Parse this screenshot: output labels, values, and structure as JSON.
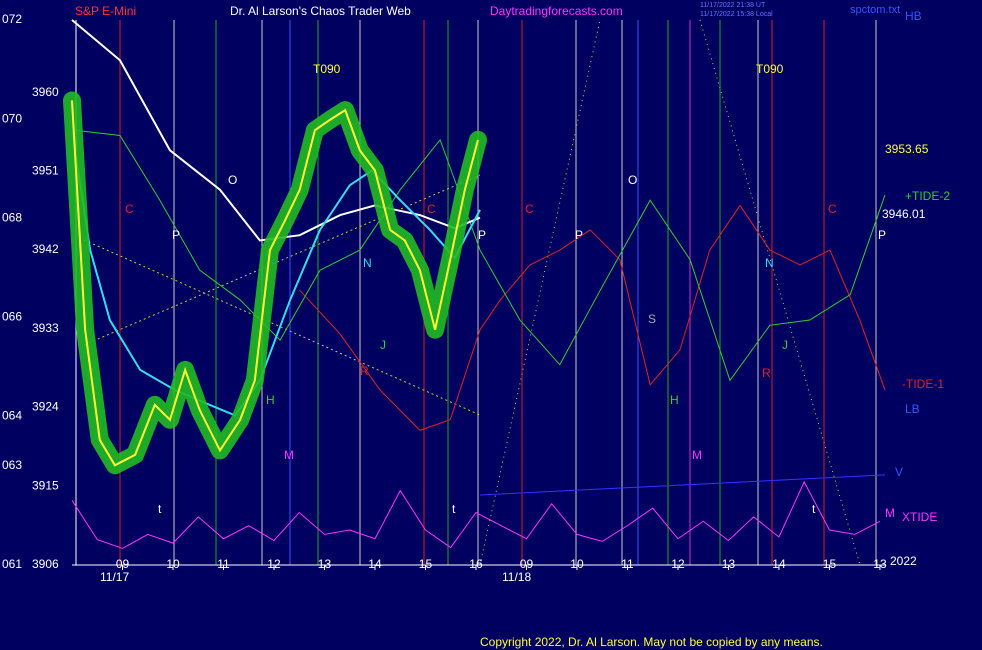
{
  "chart_data": {
    "type": "line",
    "symbol": "S&P E-Mini",
    "title": "Dr. Al Larson's Chaos Trader Web",
    "site": "Daytradingforecasts.com",
    "timestamp_ut": "11/17/2022 21:38 UT",
    "timestamp_local": "11/17/2022 15:38 Local",
    "file": "spctom.txt",
    "corner": "HB",
    "copyright": "Copyright 2022, Dr. Al Larson. May not be copied by any means.",
    "background": "#000060",
    "xlim": [
      0,
      16.1
    ],
    "xticks": [
      {
        "value": 1,
        "label": "09"
      },
      {
        "value": 2,
        "label": "10"
      },
      {
        "value": 3,
        "label": "11"
      },
      {
        "value": 4,
        "label": "12"
      },
      {
        "value": 5,
        "label": "13"
      },
      {
        "value": 6,
        "label": "14"
      },
      {
        "value": 7,
        "label": "15"
      },
      {
        "value": 8,
        "label": "16"
      },
      {
        "value": 9,
        "label": "09"
      },
      {
        "value": 10,
        "label": "10"
      },
      {
        "value": 11,
        "label": "11"
      },
      {
        "value": 12,
        "label": "12"
      },
      {
        "value": 13,
        "label": "13"
      },
      {
        "value": 14,
        "label": "14"
      },
      {
        "value": 15,
        "label": "15"
      },
      {
        "value": 16,
        "label": "13"
      }
    ],
    "dates": [
      "11/17",
      "11/18",
      "2022"
    ],
    "ylim": [
      3906,
      3968.3
    ],
    "yticks": [
      3906,
      3915,
      3924,
      3933,
      3942,
      3951,
      3960
    ],
    "y2lim": [
      61,
      72
    ],
    "y2ticks": [
      {
        "value": 61,
        "label": "061"
      },
      {
        "value": 63,
        "label": "063"
      },
      {
        "value": 64,
        "label": "064"
      },
      {
        "value": 66,
        "label": "066"
      },
      {
        "value": 68,
        "label": "068"
      },
      {
        "value": 70,
        "label": "070"
      },
      {
        "value": 72,
        "label": "072"
      }
    ],
    "series": [
      {
        "color": "#ff33ff",
        "width": 1,
        "x": [
          0,
          0.5,
          1,
          1.5,
          2,
          2.5,
          3,
          3.5,
          4,
          4.5,
          5,
          5.5,
          6,
          6.5,
          7,
          7.5,
          8,
          8.5,
          9,
          9.5,
          10,
          10.5,
          11,
          11.5,
          12,
          12.5,
          13,
          13.5,
          14,
          14.5,
          15,
          15.5,
          16
        ],
        "values": [
          3913.4,
          3908.9,
          3907.9,
          3909.5,
          3908.5,
          3911.5,
          3909,
          3910.5,
          3908.8,
          3912,
          3909.5,
          3910,
          3909,
          3914.5,
          3910,
          3908,
          3912,
          3910.5,
          3909,
          3913,
          3909.5,
          3908.7,
          3910.5,
          3912.5,
          3909,
          3911,
          3908.8,
          3911.5,
          3909.2,
          3915.5,
          3910,
          3909.5,
          3911
        ]
      },
      {
        "color": "#3333ff",
        "width": 1,
        "x": [
          8.08,
          16.1
        ],
        "values": [
          3914.0,
          3916.3
        ]
      },
      {
        "color": "#dd2222",
        "width": 1,
        "x": [
          4.51,
          5.31,
          6.1,
          6.89,
          7.49,
          8.08,
          8.48,
          9.07,
          9.66,
          10.26,
          10.85,
          11.45,
          12.04,
          12.63,
          13.23,
          13.82,
          14.42,
          15.01,
          15.6,
          16.1
        ],
        "values": [
          3937.4,
          3932.4,
          3926.0,
          3921.4,
          3922.6,
          3932.9,
          3936.3,
          3940.3,
          3942.0,
          3944.3,
          3940.9,
          3926.6,
          3930.6,
          3942.0,
          3947.1,
          3942.0,
          3940.3,
          3942.0,
          3934.0,
          3926.0
        ]
      },
      {
        "color": "#33cc33",
        "width": 1,
        "x": [
          0.06,
          0.95,
          1.74,
          2.53,
          3.33,
          4.12,
          4.91,
          5.7,
          6.5,
          7.29,
          8.08,
          8.87,
          9.66,
          10.46,
          11.45,
          12.24,
          13.03,
          13.82,
          14.61,
          15.41,
          16.1
        ],
        "values": [
          3955.7,
          3955.1,
          3947.7,
          3939.7,
          3936.3,
          3931.7,
          3939.7,
          3942.0,
          3948.9,
          3954.6,
          3942.0,
          3934.0,
          3928.9,
          3937.4,
          3947.7,
          3940.9,
          3927.1,
          3933.4,
          3934.0,
          3936.9,
          3948.3
        ]
      },
      {
        "color": "#ffffff",
        "width": 2,
        "x": [
          0,
          0.95,
          1.94,
          2.93,
          3.72,
          4.51,
          5.31,
          6.0,
          6.89,
          7.58,
          8.08
        ],
        "values": [
          3968.3,
          3963.7,
          3953.4,
          3948.9,
          3943.1,
          3943.7,
          3946.0,
          3947.1,
          3946.0,
          3944.5,
          3945.7
        ]
      },
      {
        "color": "#33ddee",
        "width": 2,
        "x": [
          0.06,
          0.36,
          0.75,
          1.35,
          2.04,
          2.73,
          3.23,
          3.72,
          4.32,
          4.91,
          5.5,
          5.94,
          6.5,
          7.09,
          7.58,
          8.08
        ],
        "values": [
          3953.4,
          3942.0,
          3934.0,
          3928.3,
          3926.0,
          3924.3,
          3923.1,
          3927.1,
          3936.3,
          3944.3,
          3949.4,
          3951.1,
          3947.7,
          3944.3,
          3941.1,
          3946.6
        ]
      },
      {
        "color": "#ffff33",
        "width": 2,
        "glow": "#22bb22",
        "x": [
          0,
          0.26,
          0.55,
          0.85,
          1.25,
          1.64,
          1.94,
          2.24,
          2.53,
          2.93,
          3.33,
          3.62,
          3.92,
          4.22,
          4.51,
          4.81,
          5.11,
          5.41,
          5.7,
          6.0,
          6.3,
          6.59,
          6.89,
          7.19,
          7.49,
          7.78,
          8.04
        ],
        "values": [
          3959.1,
          3932.9,
          3920.3,
          3917.4,
          3918.6,
          3924.3,
          3922.6,
          3928.3,
          3923.7,
          3919.1,
          3922.6,
          3927.1,
          3942.0,
          3945.4,
          3948.9,
          3955.7,
          3956.9,
          3958.0,
          3953.4,
          3951.1,
          3944.3,
          3943.1,
          3939.7,
          3932.9,
          3940.9,
          3948.9,
          3954.6
        ]
      }
    ],
    "annotations": [
      {
        "text": "C",
        "color": "#dd2222"
      },
      {
        "text": "P",
        "color": "#ffffff"
      },
      {
        "text": "O",
        "color": "#ffffff"
      },
      {
        "text": "T090",
        "color": "#ffff33"
      },
      {
        "text": "N",
        "color": "#33ddee"
      },
      {
        "text": "C",
        "color": "#dd2222"
      },
      {
        "text": "P",
        "color": "#ffffff"
      },
      {
        "text": "C",
        "color": "#dd2222"
      },
      {
        "text": "P",
        "color": "#ffffff"
      },
      {
        "text": "O",
        "color": "#ffffff"
      },
      {
        "text": "T090",
        "color": "#ffff33"
      },
      {
        "text": "N",
        "color": "#33ddee"
      },
      {
        "text": "C",
        "color": "#dd2222"
      },
      {
        "text": "P",
        "color": "#ffffff"
      },
      {
        "text": "H",
        "color": "#33cc33"
      },
      {
        "text": "M",
        "color": "#ff33ff"
      },
      {
        "text": "J",
        "color": "#33cc33"
      },
      {
        "text": "R",
        "color": "#dd2222"
      },
      {
        "text": "H",
        "color": "#33cc33"
      },
      {
        "text": "M",
        "color": "#ff33ff"
      },
      {
        "text": "J",
        "color": "#33cc33"
      },
      {
        "text": "R",
        "color": "#dd2222"
      },
      {
        "text": "S",
        "color": "#aaaaaa"
      },
      {
        "text": "t",
        "color": "#ffffff"
      },
      {
        "text": "t",
        "color": "#ffffff"
      },
      {
        "text": "t",
        "color": "#ffffff"
      },
      {
        "text": "3953.65",
        "color": "#ffff33"
      },
      {
        "text": "+TIDE-2",
        "color": "#33cc33"
      },
      {
        "text": "3946.01",
        "color": "#ffffff"
      },
      {
        "text": "-TIDE-1",
        "color": "#dd2222"
      },
      {
        "text": "LB",
        "color": "#3355ff"
      },
      {
        "text": "V",
        "color": "#3355ff"
      },
      {
        "text": "M",
        "color": "#ff33ff"
      },
      {
        "text": "XTIDE",
        "color": "#ff33ff"
      }
    ]
  }
}
